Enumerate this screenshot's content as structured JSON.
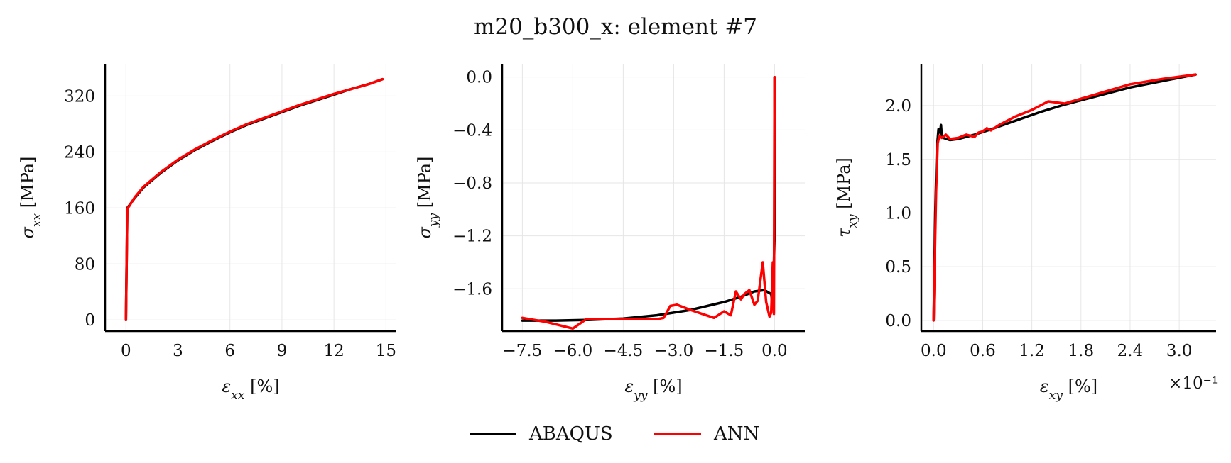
{
  "title": "m20_b300_x: element #7",
  "colors": {
    "ABAQUS": "#000000",
    "ANN": "#ff0000"
  },
  "legend": [
    {
      "label": "ABAQUS",
      "color": "#000000"
    },
    {
      "label": "ANN",
      "color": "#ff0000"
    }
  ],
  "chart_data": [
    {
      "type": "line",
      "xlabel": "ε_xx [%]",
      "ylabel": "σ_xx [MPa]",
      "xlim": [
        -1.2,
        15.6
      ],
      "ylim": [
        -16,
        366
      ],
      "xticks": [
        0,
        3,
        6,
        9,
        12,
        15
      ],
      "yticks": [
        0,
        80,
        160,
        240,
        320
      ],
      "xtick_labels": [
        "0",
        "3",
        "6",
        "9",
        "12",
        "15"
      ],
      "ytick_labels": [
        "0",
        "80",
        "160",
        "240",
        "320"
      ],
      "grid": true,
      "series": [
        {
          "name": "ABAQUS",
          "color": "#000000",
          "x": [
            0,
            0.08,
            0.2,
            0.5,
            1,
            2,
            3,
            4,
            5,
            6,
            7,
            8,
            9,
            10,
            11,
            12,
            13,
            14,
            14.8
          ],
          "y": [
            0,
            160,
            164,
            174,
            189,
            210,
            228,
            243,
            256,
            268,
            279,
            288,
            297,
            306,
            314,
            322,
            330,
            337,
            344
          ]
        },
        {
          "name": "ANN",
          "color": "#ff0000",
          "x": [
            0,
            0.08,
            0.2,
            0.5,
            1,
            2,
            3,
            4,
            5,
            6,
            7,
            8,
            9,
            10,
            11,
            12,
            13,
            14,
            14.8
          ],
          "y": [
            0,
            159,
            163,
            175,
            190,
            211,
            229,
            244,
            257,
            269,
            280,
            289,
            298,
            307,
            315,
            323,
            330,
            337,
            344
          ]
        }
      ]
    },
    {
      "type": "line",
      "xlabel": "ε_yy [%]",
      "ylabel": "σ_yy [MPa]",
      "xlim": [
        -8.1,
        0.9
      ],
      "ylim": [
        -1.92,
        0.1
      ],
      "xticks": [
        -7.5,
        -6.0,
        -4.5,
        -3.0,
        -1.5,
        0.0
      ],
      "yticks": [
        0.0,
        -0.4,
        -0.8,
        -1.2,
        -1.6
      ],
      "xtick_labels": [
        "−7.5",
        "−6.0",
        "−4.5",
        "−3.0",
        "−1.5",
        "0.0"
      ],
      "ytick_labels": [
        "0.0",
        "−0.4",
        "−0.8",
        "−1.2",
        "−1.6"
      ],
      "grid": true,
      "series": [
        {
          "name": "ABAQUS",
          "color": "#000000",
          "x": [
            -7.5,
            -6.5,
            -5.5,
            -4.5,
            -3.5,
            -3.0,
            -2.5,
            -2.0,
            -1.5,
            -1.0,
            -0.6,
            -0.3,
            -0.1,
            -0.05,
            0.0,
            0.0
          ],
          "y": [
            -1.84,
            -1.84,
            -1.835,
            -1.825,
            -1.8,
            -1.78,
            -1.76,
            -1.73,
            -1.7,
            -1.66,
            -1.62,
            -1.61,
            -1.64,
            -1.75,
            -1.2,
            0.0
          ]
        },
        {
          "name": "ANN",
          "color": "#ff0000",
          "x": [
            -7.5,
            -6.8,
            -6.0,
            -5.6,
            -4.5,
            -3.5,
            -3.3,
            -3.1,
            -2.9,
            -2.5,
            -1.8,
            -1.5,
            -1.3,
            -1.15,
            -1.0,
            -0.9,
            -0.75,
            -0.6,
            -0.5,
            -0.35,
            -0.25,
            -0.15,
            -0.1,
            -0.05,
            -0.02,
            0.0
          ],
          "y": [
            -1.82,
            -1.85,
            -1.9,
            -1.83,
            -1.83,
            -1.83,
            -1.82,
            -1.73,
            -1.72,
            -1.76,
            -1.82,
            -1.77,
            -1.8,
            -1.62,
            -1.68,
            -1.64,
            -1.61,
            -1.72,
            -1.69,
            -1.4,
            -1.7,
            -1.81,
            -1.78,
            -1.4,
            -1.79,
            0.0
          ]
        }
      ]
    },
    {
      "type": "line",
      "xlabel": "ε_xy [%]",
      "ylabel": "τ_xy [MPa]",
      "axis_multiplier": "×10⁻¹",
      "xlim": [
        -0.15,
        3.45
      ],
      "ylim": [
        -0.1,
        2.39
      ],
      "xticks": [
        0.0,
        0.6,
        1.2,
        1.8,
        2.4,
        3.0
      ],
      "yticks": [
        0.0,
        0.5,
        1.0,
        1.5,
        2.0
      ],
      "xtick_labels": [
        "0.0",
        "0.6",
        "1.2",
        "1.8",
        "2.4",
        "3.0"
      ],
      "ytick_labels": [
        "0.0",
        "0.5",
        "1.0",
        "1.5",
        "2.0"
      ],
      "grid": true,
      "series": [
        {
          "name": "ABAQUS",
          "color": "#000000",
          "x": [
            0,
            0.02,
            0.04,
            0.06,
            0.08,
            0.09,
            0.1,
            0.12,
            0.2,
            0.3,
            0.5,
            0.7,
            1.0,
            1.3,
            1.6,
            2.0,
            2.4,
            2.8,
            3.2
          ],
          "y": [
            0,
            1.0,
            1.6,
            1.78,
            1.75,
            1.82,
            1.72,
            1.7,
            1.68,
            1.69,
            1.73,
            1.78,
            1.86,
            1.94,
            2.01,
            2.09,
            2.17,
            2.23,
            2.29
          ]
        },
        {
          "name": "ANN",
          "color": "#ff0000",
          "x": [
            0,
            0.03,
            0.05,
            0.07,
            0.1,
            0.15,
            0.2,
            0.3,
            0.4,
            0.5,
            0.55,
            0.6,
            0.65,
            0.7,
            0.8,
            1.0,
            1.2,
            1.4,
            1.6,
            2.0,
            2.4,
            2.8,
            3.2
          ],
          "y": [
            0,
            1.2,
            1.65,
            1.72,
            1.7,
            1.73,
            1.69,
            1.7,
            1.73,
            1.71,
            1.75,
            1.76,
            1.79,
            1.77,
            1.82,
            1.9,
            1.96,
            2.04,
            2.02,
            2.11,
            2.2,
            2.25,
            2.29
          ]
        }
      ]
    }
  ]
}
